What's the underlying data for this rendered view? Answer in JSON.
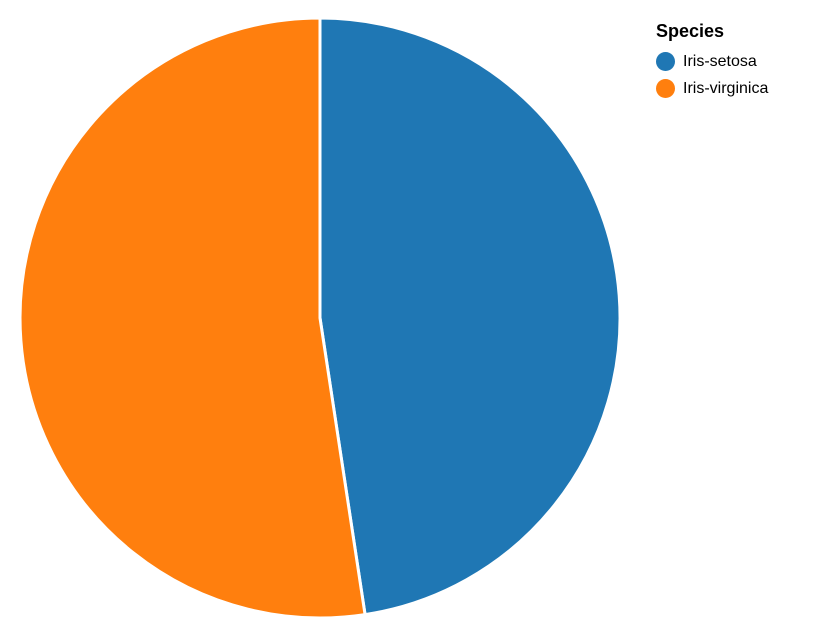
{
  "chart_data": {
    "type": "pie",
    "legend_title": "Species",
    "legend_position": "top-right",
    "categories": [
      "Iris-setosa",
      "Iris-virginica"
    ],
    "values": [
      47.6,
      52.4
    ],
    "colors": [
      "#1f77b4",
      "#ff7f0e"
    ]
  }
}
